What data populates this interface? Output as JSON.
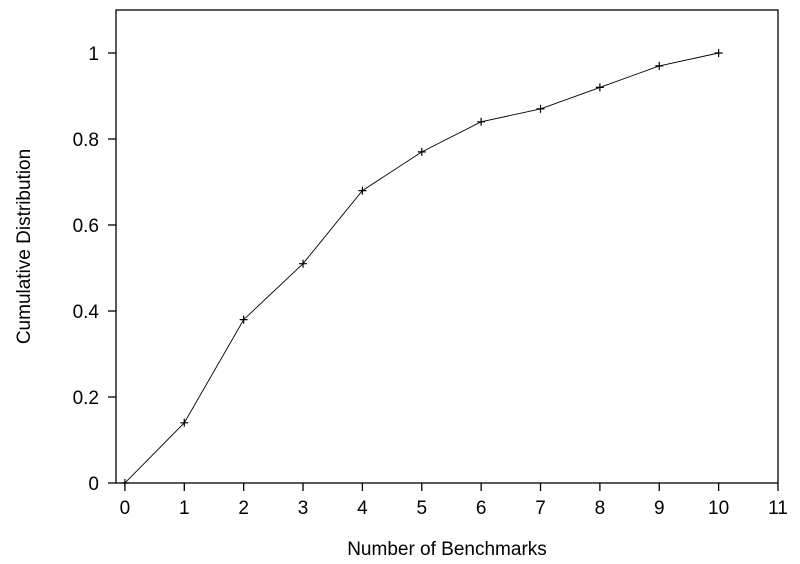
{
  "chart_data": {
    "type": "line",
    "title": "",
    "xlabel": "Number of Benchmarks",
    "ylabel": "Cumulative Distribution",
    "xlim": [
      -0.15,
      11
    ],
    "ylim": [
      0,
      1.1
    ],
    "x_ticks": [
      0,
      1,
      2,
      3,
      4,
      5,
      6,
      7,
      8,
      9,
      10,
      11
    ],
    "y_ticks": [
      0,
      0.2,
      0.4,
      0.6,
      0.8,
      1
    ],
    "y_tick_labels": [
      "0",
      "0.2",
      "0.4",
      "0.6",
      "0.8",
      "1"
    ],
    "grid": false,
    "legend": "none",
    "marker": "plus",
    "line_color": "#000000",
    "series": [
      {
        "x": [
          0,
          1,
          2,
          3,
          4,
          5,
          6,
          7,
          8,
          9,
          10
        ],
        "values": [
          0,
          0.14,
          0.38,
          0.51,
          0.68,
          0.77,
          0.84,
          0.87,
          0.92,
          0.97,
          1.0
        ]
      }
    ]
  }
}
